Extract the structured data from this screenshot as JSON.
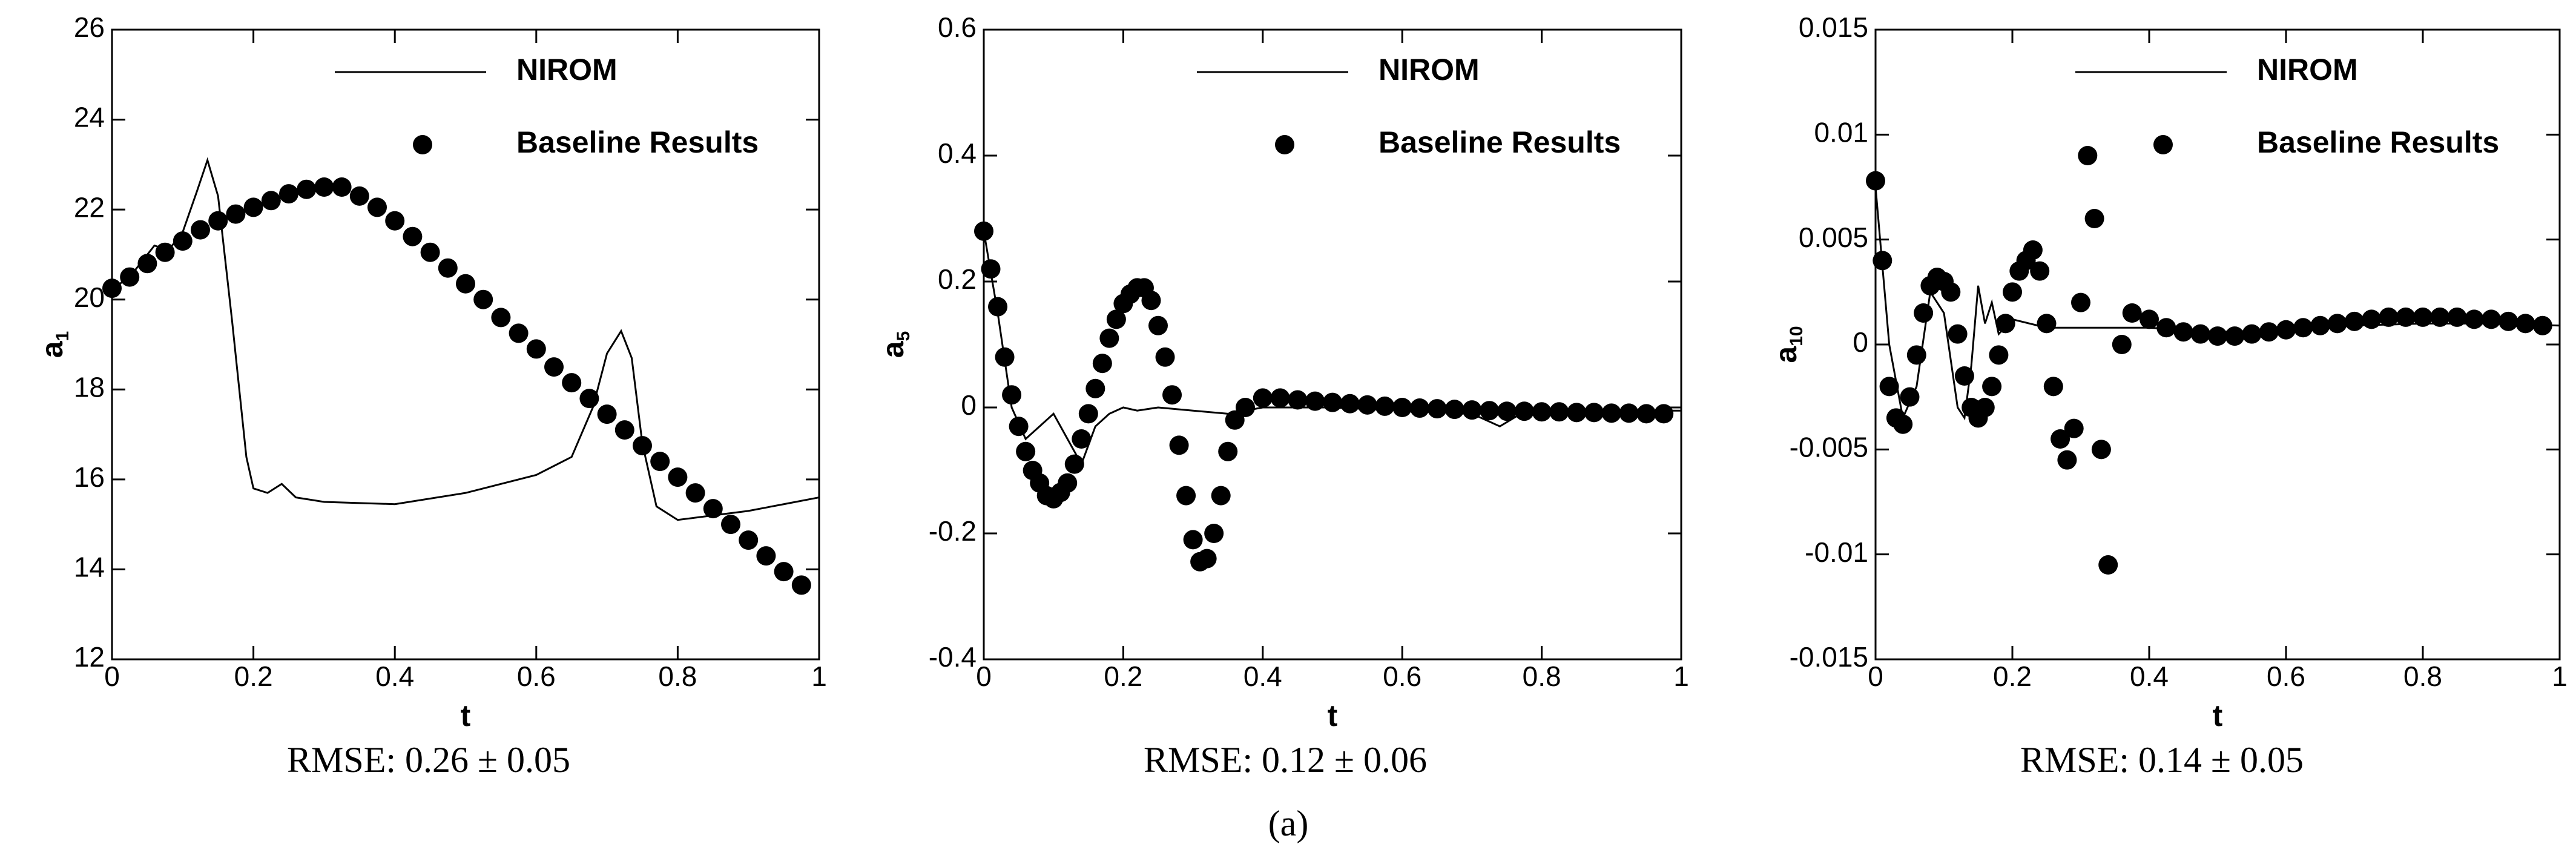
{
  "figure_label": "(a)",
  "chart_data": [
    {
      "type": "line",
      "ylabel": "a",
      "ylabel_subscript": "1",
      "xlabel": "t",
      "caption": "RMSE: 0.26 ± 0.05",
      "xlim": [
        0,
        1
      ],
      "xticks": [
        0,
        0.2,
        0.4,
        0.6,
        0.8,
        1
      ],
      "ylim": [
        12,
        26
      ],
      "yticks": [
        12,
        14,
        16,
        18,
        20,
        22,
        24,
        26
      ],
      "legend": "upper right",
      "series": [
        {
          "name": "NIROM",
          "color": "#000000",
          "style": "line",
          "x": [
            0,
            0.03,
            0.06,
            0.08,
            0.1,
            0.12,
            0.135,
            0.15,
            0.17,
            0.19,
            0.2,
            0.22,
            0.24,
            0.26,
            0.3,
            0.4,
            0.5,
            0.6,
            0.65,
            0.68,
            0.7,
            0.72,
            0.735,
            0.75,
            0.77,
            0.8,
            0.85,
            0.9,
            0.95,
            1.0
          ],
          "values": [
            20.2,
            20.6,
            21.2,
            21.1,
            21.5,
            22.4,
            23.1,
            22.3,
            19.5,
            16.5,
            15.8,
            15.7,
            15.9,
            15.6,
            15.5,
            15.45,
            15.7,
            16.1,
            16.5,
            17.6,
            18.8,
            19.3,
            18.7,
            16.8,
            15.4,
            15.1,
            15.2,
            15.3,
            15.45,
            15.6
          ]
        },
        {
          "name": "Baseline Results",
          "color": "#000000",
          "style": "marker",
          "x": [
            0,
            0.025,
            0.05,
            0.075,
            0.1,
            0.125,
            0.15,
            0.175,
            0.2,
            0.225,
            0.25,
            0.275,
            0.3,
            0.325,
            0.35,
            0.375,
            0.4,
            0.425,
            0.45,
            0.475,
            0.5,
            0.525,
            0.55,
            0.575,
            0.6,
            0.625,
            0.65,
            0.675,
            0.7,
            0.725,
            0.75,
            0.775,
            0.8,
            0.825,
            0.85,
            0.875,
            0.9,
            0.925,
            0.95,
            0.975
          ],
          "values": [
            20.25,
            20.5,
            20.8,
            21.05,
            21.3,
            21.55,
            21.75,
            21.9,
            22.05,
            22.2,
            22.35,
            22.45,
            22.5,
            22.5,
            22.3,
            22.05,
            21.75,
            21.4,
            21.05,
            20.7,
            20.35,
            20.0,
            19.6,
            19.25,
            18.9,
            18.5,
            18.15,
            17.8,
            17.45,
            17.1,
            16.75,
            16.4,
            16.05,
            15.7,
            15.35,
            15.0,
            14.65,
            14.3,
            13.95,
            13.65
          ]
        }
      ]
    },
    {
      "type": "line",
      "ylabel": "a",
      "ylabel_subscript": "5",
      "xlabel": "t",
      "caption": "RMSE: 0.12 ± 0.06",
      "xlim": [
        0,
        1
      ],
      "xticks": [
        0,
        0.2,
        0.4,
        0.6,
        0.8,
        1
      ],
      "ylim": [
        -0.4,
        0.6
      ],
      "yticks": [
        -0.4,
        -0.2,
        0,
        0.2,
        0.4,
        0.6
      ],
      "legend": "upper right",
      "series": [
        {
          "name": "NIROM",
          "color": "#000000",
          "style": "line",
          "x": [
            0,
            0.02,
            0.04,
            0.06,
            0.08,
            0.1,
            0.12,
            0.14,
            0.16,
            0.18,
            0.2,
            0.22,
            0.25,
            0.3,
            0.35,
            0.4,
            0.5,
            0.6,
            0.7,
            0.74,
            0.77,
            0.8,
            0.9,
            1.0
          ],
          "values": [
            0.28,
            0.15,
            0.0,
            -0.05,
            -0.03,
            -0.01,
            -0.05,
            -0.09,
            -0.03,
            -0.01,
            0.0,
            -0.005,
            0.0,
            -0.005,
            -0.01,
            0.0,
            0.0,
            -0.005,
            -0.01,
            -0.03,
            -0.01,
            -0.005,
            -0.005,
            -0.005
          ]
        },
        {
          "name": "Baseline Results",
          "color": "#000000",
          "style": "marker",
          "x": [
            0,
            0.01,
            0.02,
            0.03,
            0.04,
            0.05,
            0.06,
            0.07,
            0.08,
            0.09,
            0.1,
            0.11,
            0.12,
            0.13,
            0.14,
            0.15,
            0.16,
            0.17,
            0.18,
            0.19,
            0.2,
            0.21,
            0.22,
            0.23,
            0.24,
            0.25,
            0.26,
            0.27,
            0.28,
            0.29,
            0.3,
            0.31,
            0.32,
            0.33,
            0.34,
            0.35,
            0.36,
            0.375,
            0.4,
            0.425,
            0.45,
            0.475,
            0.5,
            0.525,
            0.55,
            0.575,
            0.6,
            0.625,
            0.65,
            0.675,
            0.7,
            0.725,
            0.75,
            0.775,
            0.8,
            0.825,
            0.85,
            0.875,
            0.9,
            0.925,
            0.95,
            0.975
          ],
          "values": [
            0.28,
            0.22,
            0.16,
            0.08,
            0.02,
            -0.03,
            -0.07,
            -0.1,
            -0.12,
            -0.14,
            -0.145,
            -0.135,
            -0.12,
            -0.09,
            -0.05,
            -0.01,
            0.03,
            0.07,
            0.11,
            0.14,
            0.165,
            0.18,
            0.19,
            0.19,
            0.17,
            0.13,
            0.08,
            0.02,
            -0.06,
            -0.14,
            -0.21,
            -0.245,
            -0.24,
            -0.2,
            -0.14,
            -0.07,
            -0.02,
            0.0,
            0.015,
            0.015,
            0.012,
            0.01,
            0.008,
            0.006,
            0.004,
            0.002,
            0.0,
            -0.001,
            -0.002,
            -0.003,
            -0.004,
            -0.005,
            -0.006,
            -0.006,
            -0.007,
            -0.007,
            -0.008,
            -0.008,
            -0.009,
            -0.009,
            -0.01,
            -0.01
          ]
        }
      ]
    },
    {
      "type": "line",
      "ylabel": "a",
      "ylabel_subscript": "10",
      "xlabel": "t",
      "caption": "RMSE: 0.14 ± 0.05",
      "xlim": [
        0,
        1
      ],
      "xticks": [
        0,
        0.2,
        0.4,
        0.6,
        0.8,
        1
      ],
      "ylim": [
        -0.015,
        0.015
      ],
      "yticks": [
        -0.015,
        -0.01,
        -0.005,
        0,
        0.005,
        0.01,
        0.015
      ],
      "legend": "upper right",
      "series": [
        {
          "name": "NIROM",
          "color": "#000000",
          "style": "line",
          "x": [
            0,
            0.02,
            0.04,
            0.06,
            0.08,
            0.1,
            0.12,
            0.13,
            0.14,
            0.15,
            0.16,
            0.17,
            0.18,
            0.2,
            0.25,
            0.3,
            0.4,
            0.5,
            0.6,
            0.7,
            0.8,
            0.9,
            1.0
          ],
          "values": [
            0.0075,
            0.0,
            -0.0035,
            -0.002,
            0.0025,
            0.0015,
            -0.003,
            -0.0035,
            -0.001,
            0.0028,
            0.001,
            0.002,
            0.0005,
            0.0012,
            0.0008,
            0.0008,
            0.0008,
            0.0006,
            0.0007,
            0.0009,
            0.001,
            0.001,
            0.0009
          ]
        },
        {
          "name": "Baseline Results",
          "color": "#000000",
          "style": "marker",
          "x": [
            0,
            0.01,
            0.02,
            0.03,
            0.04,
            0.05,
            0.06,
            0.07,
            0.08,
            0.09,
            0.1,
            0.11,
            0.12,
            0.13,
            0.14,
            0.15,
            0.16,
            0.17,
            0.18,
            0.19,
            0.2,
            0.21,
            0.22,
            0.23,
            0.24,
            0.25,
            0.26,
            0.27,
            0.28,
            0.29,
            0.3,
            0.31,
            0.32,
            0.33,
            0.34,
            0.36,
            0.375,
            0.4,
            0.425,
            0.45,
            0.475,
            0.5,
            0.525,
            0.55,
            0.575,
            0.6,
            0.625,
            0.65,
            0.675,
            0.7,
            0.725,
            0.75,
            0.775,
            0.8,
            0.825,
            0.85,
            0.875,
            0.9,
            0.925,
            0.95,
            0.975
          ],
          "values": [
            0.0078,
            0.004,
            -0.002,
            -0.0035,
            -0.0038,
            -0.0025,
            -0.0005,
            0.0015,
            0.0028,
            0.0032,
            0.003,
            0.0025,
            0.0005,
            -0.0015,
            -0.003,
            -0.0035,
            -0.003,
            -0.002,
            -0.0005,
            0.001,
            0.0025,
            0.0035,
            0.004,
            0.0045,
            0.0035,
            0.001,
            -0.002,
            -0.0045,
            -0.0055,
            -0.004,
            0.002,
            0.009,
            0.006,
            -0.005,
            -0.0105,
            0.0,
            0.0015,
            0.0012,
            0.0008,
            0.0006,
            0.0005,
            0.0004,
            0.0004,
            0.0005,
            0.0006,
            0.0007,
            0.0008,
            0.0009,
            0.001,
            0.0011,
            0.0012,
            0.0013,
            0.0013,
            0.0013,
            0.0013,
            0.0013,
            0.0012,
            0.0012,
            0.0011,
            0.001,
            0.0009
          ]
        }
      ]
    }
  ]
}
